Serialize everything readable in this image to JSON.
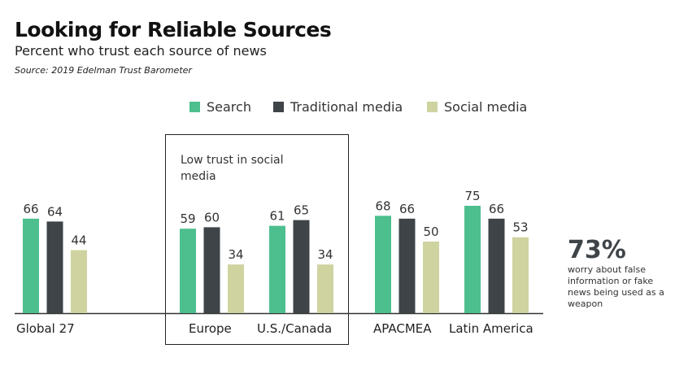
{
  "title": "Looking for Reliable Sources",
  "subtitle": "Percent who trust each source of news",
  "source": "Source: 2019 Edelman Trust Barometer",
  "callout": {
    "value": "73%",
    "text": "worry about false information or fake news being used as a weapon"
  },
  "box_note": "Low trust in social media",
  "chart_data": {
    "type": "bar",
    "categories": [
      "Global 27",
      "Europe",
      "U.S./Canada",
      "APACMEA",
      "Latin America"
    ],
    "series": [
      {
        "name": "Search",
        "color": "#4dbf8f",
        "values": [
          66,
          59,
          61,
          68,
          75
        ]
      },
      {
        "name": "Traditional media",
        "color": "#3f4449",
        "values": [
          64,
          60,
          65,
          66,
          66
        ]
      },
      {
        "name": "Social media",
        "color": "#cfd3a0",
        "values": [
          44,
          34,
          34,
          50,
          53
        ]
      }
    ],
    "legend": "top",
    "grid": false
  }
}
